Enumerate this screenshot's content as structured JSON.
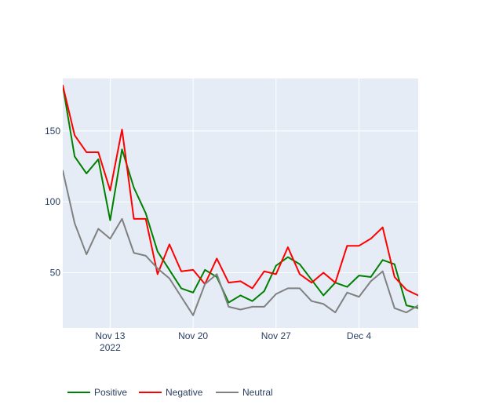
{
  "chart_data": {
    "type": "line",
    "title": "",
    "xlabel": "",
    "ylabel": "",
    "x": [
      "2022-11-09",
      "2022-11-10",
      "2022-11-11",
      "2022-11-12",
      "2022-11-13",
      "2022-11-14",
      "2022-11-15",
      "2022-11-16",
      "2022-11-17",
      "2022-11-18",
      "2022-11-19",
      "2022-11-20",
      "2022-11-21",
      "2022-11-22",
      "2022-11-23",
      "2022-11-24",
      "2022-11-25",
      "2022-11-26",
      "2022-11-27",
      "2022-11-28",
      "2022-11-29",
      "2022-11-30",
      "2022-12-01",
      "2022-12-02",
      "2022-12-03",
      "2022-12-04",
      "2022-12-05",
      "2022-12-06",
      "2022-12-07",
      "2022-12-08",
      "2022-12-09",
      "2022-12-10"
    ],
    "series": [
      {
        "name": "Positive",
        "color": "#008000",
        "values": [
          182,
          132,
          120,
          130,
          87,
          137,
          110,
          92,
          65,
          52,
          39,
          36,
          52,
          47,
          29,
          34,
          30,
          37,
          55,
          61,
          56,
          45,
          34,
          43,
          40,
          48,
          47,
          59,
          56,
          27,
          25,
          27
        ]
      },
      {
        "name": "Negative",
        "color": "#ff0000",
        "values": [
          182,
          147,
          135,
          135,
          108,
          151,
          88,
          88,
          49,
          70,
          51,
          52,
          42,
          60,
          43,
          44,
          39,
          51,
          49,
          68,
          49,
          43,
          50,
          43,
          69,
          69,
          74,
          82,
          47,
          38,
          34,
          31
        ]
      },
      {
        "name": "Neutral",
        "color": "#808080",
        "values": [
          122,
          85,
          63,
          81,
          74,
          88,
          64,
          62,
          53,
          46,
          33,
          20,
          42,
          49,
          26,
          24,
          26,
          26,
          35,
          39,
          39,
          30,
          28,
          22,
          36,
          33,
          44,
          51,
          25,
          22,
          27,
          27
        ]
      }
    ],
    "x_ticks": [
      {
        "date": "2022-11-13",
        "label": "Nov 13",
        "sublabel": "2022"
      },
      {
        "date": "2022-11-20",
        "label": "Nov 20",
        "sublabel": ""
      },
      {
        "date": "2022-11-27",
        "label": "Nov 27",
        "sublabel": ""
      },
      {
        "date": "2022-12-04",
        "label": "Dec 4",
        "sublabel": ""
      }
    ],
    "y_ticks": [
      50,
      100,
      150
    ],
    "xlim": [
      "2022-11-09",
      "2022-12-09"
    ],
    "ylim": [
      11,
      187
    ],
    "grid": true,
    "legend_position": "bottom-left",
    "plot_bg": "#e5ecf6"
  }
}
